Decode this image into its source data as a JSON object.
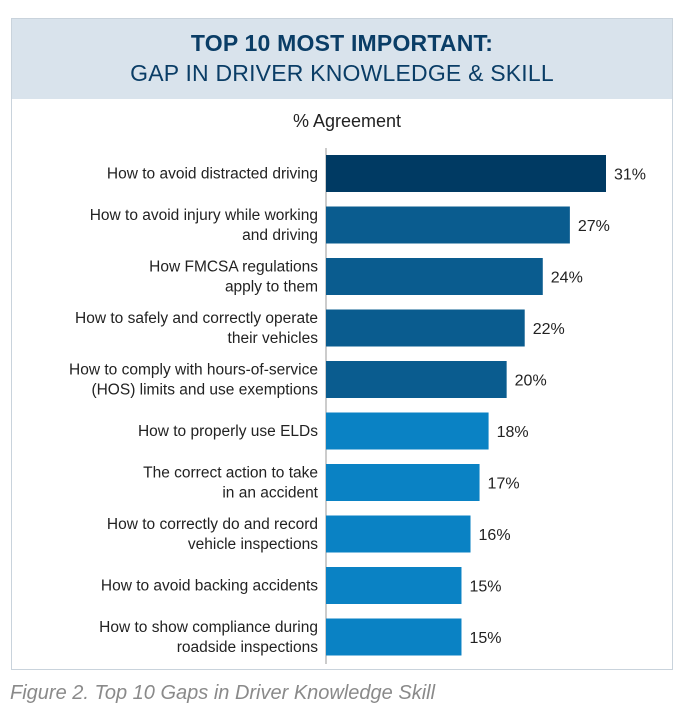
{
  "header": {
    "title_line1": "TOP 10 MOST IMPORTANT:",
    "title_line2": "GAP IN DRIVER KNOWLEDGE & SKILL",
    "subtitle": "% Agreement"
  },
  "colors": {
    "bar_darkest": "#003a63",
    "bar_dark": "#0a5c8f",
    "bar_light": "#0a82c4",
    "header_bg": "#d9e3ec",
    "title": "#0a3d66"
  },
  "chart_data": {
    "type": "bar",
    "orientation": "horizontal",
    "title": "TOP 10 MOST IMPORTANT: GAP IN DRIVER KNOWLEDGE & SKILL",
    "xlabel": "% Agreement",
    "ylabel": "",
    "xlim": [
      0,
      31
    ],
    "grid": false,
    "categories": [
      [
        "How to avoid distracted driving"
      ],
      [
        "How to avoid injury while working",
        "and driving"
      ],
      [
        "How FMCSA regulations",
        "apply to them"
      ],
      [
        "How to safely and correctly operate",
        "their vehicles"
      ],
      [
        "How to comply with hours-of-service",
        "(HOS) limits and use exemptions"
      ],
      [
        "How to properly use ELDs"
      ],
      [
        "The correct action to take",
        "in an accident"
      ],
      [
        "How to correctly do and record",
        "vehicle inspections"
      ],
      [
        "How to avoid backing accidents"
      ],
      [
        "How to show compliance during",
        "roadside inspections"
      ]
    ],
    "values": [
      31,
      27,
      24,
      22,
      20,
      18,
      17,
      16,
      15,
      15
    ],
    "value_labels": [
      "31%",
      "27%",
      "24%",
      "22%",
      "20%",
      "18%",
      "17%",
      "16%",
      "15%",
      "15%"
    ],
    "color_groups": [
      "darkest",
      "dark",
      "dark",
      "dark",
      "dark",
      "light",
      "light",
      "light",
      "light",
      "light"
    ]
  },
  "caption": "Figure 2. Top 10 Gaps in Driver Knowledge Skill"
}
